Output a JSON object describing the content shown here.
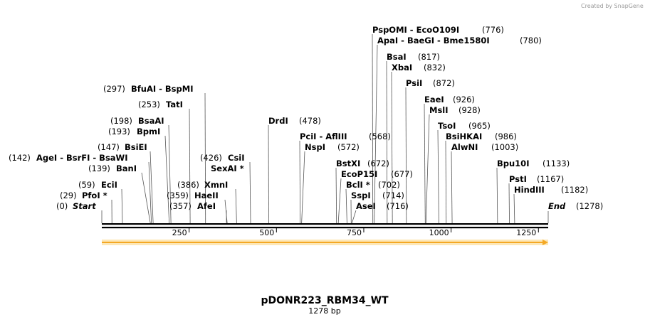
{
  "watermark": "Created by SnapGene",
  "map": {
    "name": "pDONR223_RBM34_WT",
    "length_label": "1278 bp",
    "length_bp": 1278,
    "backbone_color": "#000000",
    "feature_color": "#f4a824"
  },
  "ticks": [
    "250",
    "500",
    "750",
    "1000",
    "1250"
  ],
  "sites": [
    {
      "text": "(776)",
      "pos": 776,
      "right": true
    },
    {
      "text": "PspOMI  - EcoO109I",
      "pos": 776,
      "right": true
    },
    {
      "text": "(780)",
      "pos": 780,
      "right": true
    },
    {
      "text": "ApaI  - BaeGI  - Bme1580I",
      "pos": 780,
      "right": true
    },
    {
      "text": "BsaI",
      "pos": 817,
      "right": true
    },
    {
      "text": "(817)",
      "pos": 817,
      "right": true
    },
    {
      "text": "XbaI",
      "pos": 832,
      "right": true
    },
    {
      "text": "(832)",
      "pos": 832,
      "right": true
    },
    {
      "text": "PsiI",
      "pos": 872,
      "right": true
    },
    {
      "text": "(872)",
      "pos": 872,
      "right": true
    },
    {
      "text": "EaeI",
      "pos": 926,
      "right": true
    },
    {
      "text": "(926)",
      "pos": 926,
      "right": true
    },
    {
      "text": "MslI",
      "pos": 928,
      "right": true
    },
    {
      "text": "(928)",
      "pos": 928,
      "right": true
    },
    {
      "text": "TsoI",
      "pos": 965,
      "right": true
    },
    {
      "text": "(965)",
      "pos": 965,
      "right": true
    },
    {
      "text": "BsiHKAI",
      "pos": 986,
      "right": true
    },
    {
      "text": "(986)",
      "pos": 986,
      "right": true
    },
    {
      "text": "AlwNI",
      "pos": 1003,
      "right": true
    },
    {
      "text": "(1003)",
      "pos": 1003,
      "right": true
    },
    {
      "text": "Bpu10I",
      "pos": 1133,
      "right": true
    },
    {
      "text": "(1133)",
      "pos": 1133,
      "right": true
    },
    {
      "text": "PstI",
      "pos": 1167,
      "right": true
    },
    {
      "text": "(1167)",
      "pos": 1167,
      "right": true
    },
    {
      "text": "HindIII",
      "pos": 1182,
      "right": true
    },
    {
      "text": "(1182)",
      "pos": 1182,
      "right": true
    },
    {
      "text": "End",
      "pos": 1278,
      "right": true
    },
    {
      "text": "(1278)",
      "pos": 1278,
      "right": true
    },
    {
      "text": "(297)",
      "pos": 297,
      "right": false
    },
    {
      "text": "BfuAI  - BspMI",
      "pos": 297,
      "right": false
    },
    {
      "text": "(253)",
      "pos": 253,
      "right": false
    },
    {
      "text": "TatI",
      "pos": 253,
      "right": false
    },
    {
      "text": "(198)",
      "pos": 198,
      "right": false
    },
    {
      "text": "BsaAI",
      "pos": 198,
      "right": false
    },
    {
      "text": "(193)",
      "pos": 193,
      "right": false
    },
    {
      "text": "BpmI",
      "pos": 193,
      "right": false
    },
    {
      "text": "(147)",
      "pos": 147,
      "right": false
    },
    {
      "text": "BsiEI",
      "pos": 147,
      "right": false
    },
    {
      "text": "(142)",
      "pos": 142,
      "right": false
    },
    {
      "text": "AgeI  - BsrFI  - BsaWI",
      "pos": 142,
      "right": false
    },
    {
      "text": "(139)",
      "pos": 139,
      "right": false
    },
    {
      "text": "BanI",
      "pos": 139,
      "right": false
    },
    {
      "text": "(59)",
      "pos": 59,
      "right": false
    },
    {
      "text": "EciI",
      "pos": 59,
      "right": false
    },
    {
      "text": "(29)",
      "pos": 29,
      "right": false
    },
    {
      "text": "PfoI *",
      "pos": 29,
      "right": false
    },
    {
      "text": "(0)",
      "pos": 0,
      "right": false
    },
    {
      "text": "Start",
      "pos": 0,
      "right": false
    },
    {
      "text": "DrdI",
      "pos": 478,
      "right": true
    },
    {
      "text": "(478)",
      "pos": 478,
      "right": true
    },
    {
      "text": "(426)",
      "pos": 426,
      "right": false
    },
    {
      "text": "CsiI",
      "pos": 426,
      "right": false
    },
    {
      "text": "SexAI *",
      "pos": 426,
      "right": false
    },
    {
      "text": "(386)",
      "pos": 386,
      "right": false
    },
    {
      "text": "XmnI",
      "pos": 386,
      "right": false
    },
    {
      "text": "(359)",
      "pos": 359,
      "right": false
    },
    {
      "text": "HaeII",
      "pos": 359,
      "right": false
    },
    {
      "text": "(357)",
      "pos": 357,
      "right": false
    },
    {
      "text": "AfeI",
      "pos": 357,
      "right": false
    },
    {
      "text": "PciI  - AflIII",
      "pos": 568,
      "right": true
    },
    {
      "text": "(568)",
      "pos": 568,
      "right": true
    },
    {
      "text": "NspI",
      "pos": 572,
      "right": true
    },
    {
      "text": "(572)",
      "pos": 572,
      "right": true
    },
    {
      "text": "BstXI",
      "pos": 672,
      "right": true
    },
    {
      "text": "(672)",
      "pos": 672,
      "right": true
    },
    {
      "text": "EcoP15I",
      "pos": 677,
      "right": true
    },
    {
      "text": "(677)",
      "pos": 677,
      "right": true
    },
    {
      "text": "BclI *",
      "pos": 702,
      "right": true
    },
    {
      "text": "(702)",
      "pos": 702,
      "right": true
    },
    {
      "text": "SspI",
      "pos": 714,
      "right": true
    },
    {
      "text": "(714)",
      "pos": 714,
      "right": true
    },
    {
      "text": "AseI",
      "pos": 716,
      "right": true
    },
    {
      "text": "(716)",
      "pos": 716,
      "right": true
    }
  ]
}
